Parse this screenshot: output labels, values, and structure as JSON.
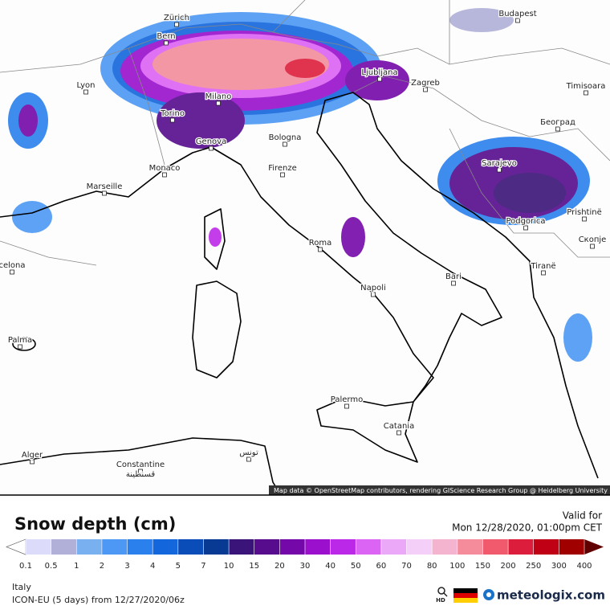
{
  "map": {
    "cities": [
      "Zürich",
      "Bern",
      "Budapest",
      "Lyon",
      "Milano",
      "Torino",
      "Ljubljana",
      "Zagreb",
      "Timisoara",
      "Genova",
      "Bologna",
      "Београд",
      "Monaco",
      "Firenze",
      "Sarajevo",
      "Marseille",
      "Podgorica",
      "Prishtinë",
      "Скопје",
      "Roma",
      "celona",
      "Tiranë",
      "Bari",
      "Napoli",
      "Palma",
      "Palermo",
      "Catania",
      "Alger",
      "Constantine",
      "قسنطينة",
      "تونس"
    ],
    "attribution": "Map data © OpenStreetMap contributors, rendering GIScience Research Group @ Heidelberg University"
  },
  "legend": {
    "title": "Snow depth (cm)",
    "valid_label": "Valid for",
    "valid_time": "Mon 12/28/2020, 01:00pm CET",
    "ticks": [
      0.1,
      0.5,
      1,
      2,
      3,
      4,
      5,
      7,
      10,
      15,
      20,
      30,
      40,
      50,
      60,
      70,
      80,
      100,
      150,
      200,
      250,
      300,
      400
    ],
    "colors": [
      "#dcdcfa",
      "#b0b0d8",
      "#78b0f0",
      "#4c98f4",
      "#2a80ec",
      "#1466dc",
      "#0a4cb8",
      "#083a94",
      "#3a1478",
      "#560c8c",
      "#7408a8",
      "#9a10cc",
      "#bc28e8",
      "#dc64f4",
      "#eca8f8",
      "#f4d0f8",
      "#f4b4d0",
      "#f48c9c",
      "#f05a6c",
      "#dc1e3c",
      "#c00014",
      "#a00000"
    ],
    "low_color": "#ffffff",
    "high_color": "#600000"
  },
  "footer": {
    "region": "Italy",
    "model": "ICON-EU (5 days) from 12/27/2020/06z",
    "hd": "HD",
    "brand": "meteologix.com"
  }
}
